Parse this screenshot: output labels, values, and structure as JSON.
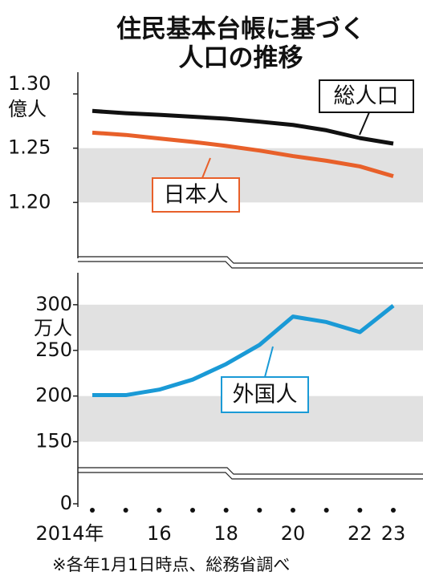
{
  "chart_data": {
    "type": "line",
    "title": "住民基本台帳に基づく",
    "subtitle": "人口の推移",
    "categories": [
      "2014年",
      null,
      "16",
      null,
      "18",
      null,
      "20",
      null,
      "22",
      "23"
    ],
    "note": "※各年1月1日時点、総務省調べ",
    "panels": [
      {
        "ylabel": "億人",
        "ylim": [
          1.15,
          1.32
        ],
        "yticks": [
          {
            "value": 1.2,
            "label": "1.20"
          },
          1.25,
          {
            "value": 1.3,
            "label": "1.30"
          }
        ],
        "bands": [
          [
            1.2,
            1.25
          ]
        ],
        "series": [
          {
            "name": "総人口",
            "color": "#111111",
            "values": [
              1.2843,
              1.2822,
              1.2807,
              1.279,
              1.2771,
              1.2744,
              1.2714,
              1.2665,
              1.2593,
              1.2542
            ]
          },
          {
            "name": "日本人",
            "color": "#e8602a",
            "values": [
              1.2643,
              1.2622,
              1.2589,
              1.2558,
              1.2521,
              1.2478,
              1.2427,
              1.2384,
              1.2332,
              1.2242
            ]
          }
        ]
      },
      {
        "ylabel": "万人",
        "ylim": [
          0,
          335
        ],
        "axis_break": [
          20,
          102
        ],
        "yticks": [
          0,
          150,
          200,
          250,
          300
        ],
        "bands": [
          [
            150,
            200
          ],
          [
            250,
            300
          ]
        ],
        "series": [
          {
            "name": "外国人",
            "color": "#1a9ad6",
            "values": [
              201,
              201,
              207,
              218,
              235,
              256,
              287,
              281,
              270,
              299
            ]
          }
        ]
      }
    ]
  }
}
